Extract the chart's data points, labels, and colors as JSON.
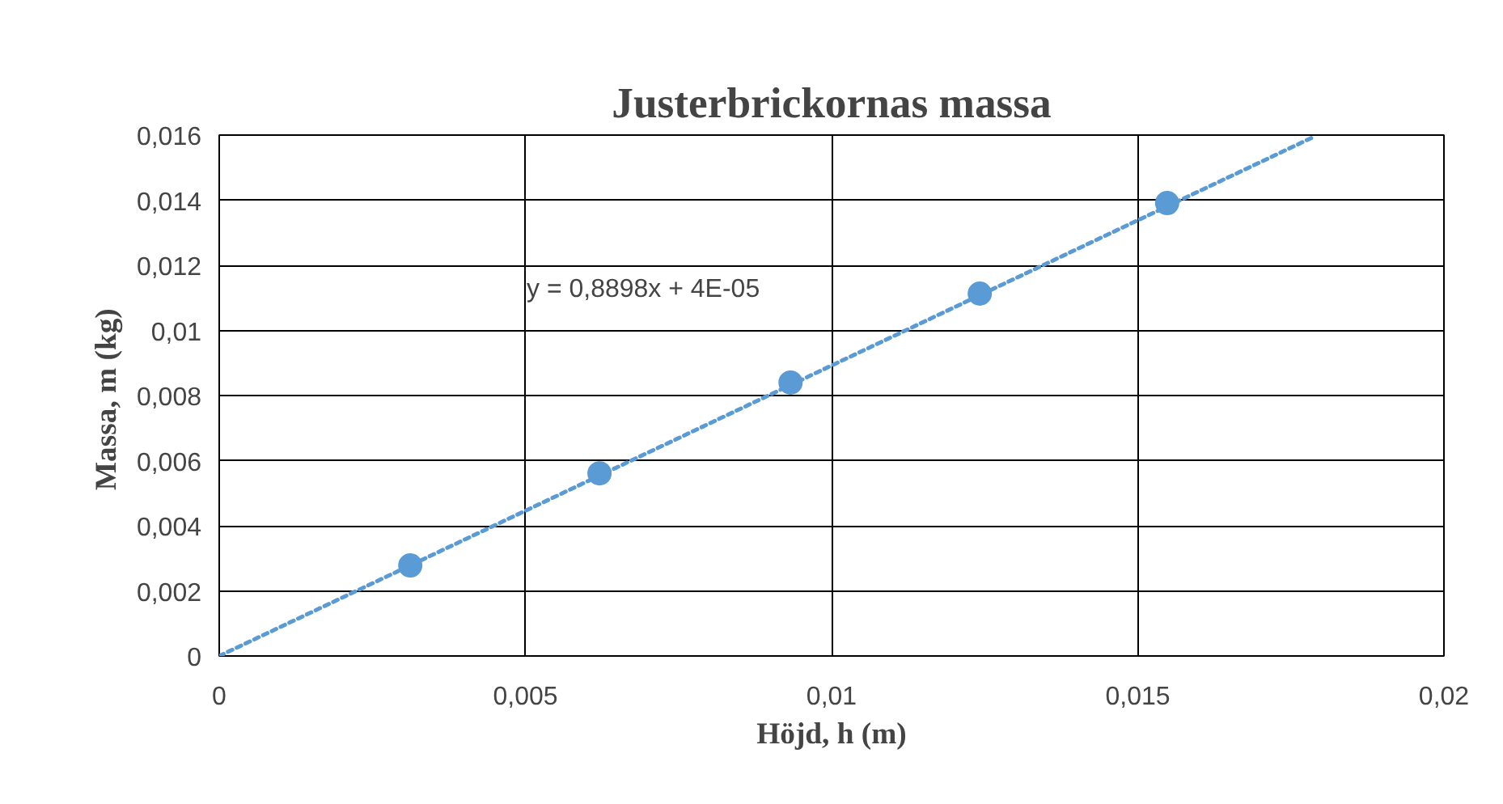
{
  "chart_data": {
    "type": "scatter",
    "title": "Justerbrickornas massa",
    "xlabel": "Höjd, h (m)",
    "ylabel": "Massa, m  (kg)",
    "xlim": [
      0,
      0.02
    ],
    "xticks": [
      0,
      {
        "value": 0.005,
        "label": "0,005"
      },
      {
        "value": 0.01,
        "label": "0,01"
      },
      {
        "value": 0.015,
        "label": "0,015"
      },
      {
        "value": 0.02,
        "label": "0,02"
      }
    ],
    "ylim": [
      0,
      0.016
    ],
    "yticks": [
      0,
      {
        "value": 0.002,
        "label": "0,002"
      },
      {
        "value": 0.004,
        "label": "0,004"
      },
      {
        "value": 0.006,
        "label": "0,006"
      },
      {
        "value": 0.008,
        "label": "0,008"
      },
      {
        "value": 0.01,
        "label": "0,01"
      },
      {
        "value": 0.012,
        "label": "0,012"
      },
      {
        "value": 0.014,
        "label": "0,014"
      },
      {
        "value": 0.016,
        "label": "0,016"
      }
    ],
    "grid": true,
    "annotations": [
      "y = 0,8898x + 4E-05"
    ],
    "series": [
      {
        "marker": "circle",
        "color": "#5b9bd5",
        "x": [
          0.00312,
          0.00621,
          0.00933,
          0.01242,
          0.01548
        ],
        "values": [
          0.00278,
          0.00561,
          0.0084,
          0.01113,
          0.01391
        ]
      },
      {
        "type": "line",
        "color": "#5b9bd5",
        "line_style": "dotted",
        "x": [
          0,
          0.0179
        ],
        "values": [
          0,
          0.01597
        ]
      }
    ]
  }
}
